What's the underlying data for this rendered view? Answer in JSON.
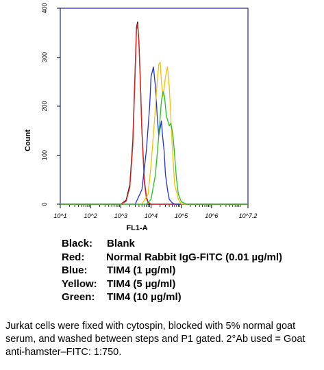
{
  "chart_data": {
    "type": "line",
    "xlabel": "FL1-A",
    "ylabel": "Count",
    "xscale": "log",
    "xlim": [
      10,
      16000000
    ],
    "ylim": [
      0,
      400
    ],
    "y_ticks": [
      "0",
      "100",
      "200",
      "300",
      "400"
    ],
    "x_ticks": [
      {
        "value": 10,
        "label": "10^1"
      },
      {
        "value": 100,
        "label": "10^2"
      },
      {
        "value": 1000,
        "label": "10^3"
      },
      {
        "value": 10000,
        "label": "10^4"
      },
      {
        "value": 100000,
        "label": "10^5"
      },
      {
        "value": 1000000,
        "label": "10^6"
      },
      {
        "value": 16000000,
        "label": "10^7.2"
      }
    ],
    "grid": false,
    "series": [
      {
        "name": "Blank",
        "color": "#111111",
        "x": [
          1000,
          1500,
          2000,
          2500,
          3000,
          3300,
          3600,
          4000,
          4500,
          5000,
          6000,
          7000,
          8000,
          10000
        ],
        "y": [
          0,
          8,
          40,
          130,
          280,
          360,
          372,
          330,
          240,
          150,
          50,
          15,
          4,
          0
        ]
      },
      {
        "name": "Normal Rabbit IgG-FITC (0.01 µg/ml)",
        "color": "#e8201a",
        "x": [
          1000,
          1500,
          2000,
          2500,
          3000,
          3300,
          3600,
          4000,
          4500,
          5000,
          6000,
          7000,
          8000,
          10000
        ],
        "y": [
          0,
          6,
          35,
          120,
          270,
          355,
          368,
          325,
          235,
          145,
          45,
          12,
          3,
          0
        ]
      },
      {
        "name": "TIM4 (1 µg/ml)",
        "color": "#1f2fe0",
        "x": [
          3000,
          5000,
          7000,
          9000,
          10000,
          12000,
          14000,
          16000,
          18000,
          20000,
          22000,
          24000,
          27000,
          30000,
          35000,
          40000,
          50000,
          60000
        ],
        "y": [
          0,
          30,
          110,
          200,
          260,
          280,
          240,
          180,
          140,
          155,
          170,
          140,
          110,
          60,
          30,
          10,
          3,
          0
        ]
      },
      {
        "name": "TIM4 (5 µg/ml)",
        "color": "#f5c000",
        "x": [
          5000,
          8000,
          10000,
          13000,
          16000,
          18000,
          20000,
          22000,
          25000,
          30000,
          35000,
          40000,
          45000,
          50000,
          55000,
          60000,
          80000,
          100000
        ],
        "y": [
          0,
          20,
          80,
          170,
          250,
          285,
          290,
          250,
          220,
          260,
          280,
          240,
          180,
          120,
          80,
          40,
          10,
          0
        ]
      },
      {
        "name": "TIM4 (10 µg/ml)",
        "color": "#22c21a",
        "x": [
          7000,
          10000,
          14000,
          18000,
          22000,
          25000,
          28000,
          32000,
          36000,
          40000,
          45000,
          50000,
          55000,
          60000,
          70000,
          80000,
          100000,
          150000
        ],
        "y": [
          0,
          10,
          60,
          140,
          210,
          230,
          220,
          180,
          170,
          160,
          165,
          150,
          130,
          100,
          50,
          20,
          5,
          0
        ]
      }
    ]
  },
  "legend": [
    {
      "key": "Black:",
      "label": "Blank"
    },
    {
      "key": "Red:",
      "label": "Normal Rabbit IgG-FITC (0.01 µg/ml)"
    },
    {
      "key": "Blue:",
      "label": "TIM4 (1 µg/ml)"
    },
    {
      "key": "Yellow:",
      "label": "TIM4 (5 µg/ml)"
    },
    {
      "key": "Green:",
      "label": "TIM4 (10 µg/ml)"
    }
  ],
  "caption": "Jurkat cells were fixed with cytospin, blocked with 5% normal goat serum, and washed between steps and P1 gated. 2°Ab used = Goat anti-hamster–FITC: 1:750."
}
